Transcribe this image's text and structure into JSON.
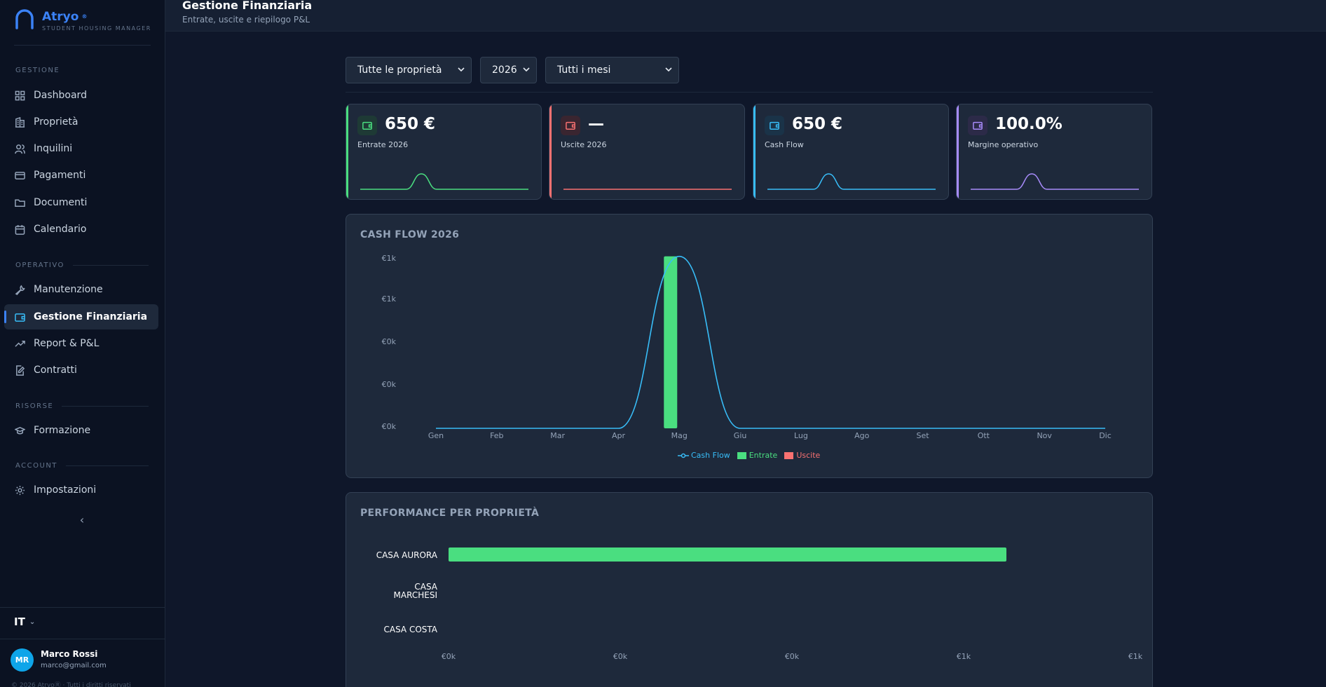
{
  "app": {
    "name": "Atryo",
    "badge": "®",
    "subtitle": "STUDENT HOUSING MANAGER"
  },
  "sidebar": {
    "sections": {
      "gestione": "GESTIONE",
      "operativo": "OPERATIVO",
      "risorse": "RISORSE",
      "account": "ACCOUNT"
    },
    "items": [
      {
        "label": "Dashboard",
        "icon": "grid-icon"
      },
      {
        "label": "Proprietà",
        "icon": "building-icon"
      },
      {
        "label": "Inquilini",
        "icon": "users-icon"
      },
      {
        "label": "Pagamenti",
        "icon": "card-icon"
      },
      {
        "label": "Documenti",
        "icon": "folder-icon"
      },
      {
        "label": "Calendario",
        "icon": "calendar-icon"
      },
      {
        "label": "Manutenzione",
        "icon": "wrench-icon"
      },
      {
        "label": "Gestione Finanziaria",
        "icon": "wallet-icon",
        "active": true
      },
      {
        "label": "Report & P&L",
        "icon": "trending-up-icon"
      },
      {
        "label": "Contratti",
        "icon": "file-edit-icon"
      },
      {
        "label": "Formazione",
        "icon": "graduation-cap-icon"
      },
      {
        "label": "Impostazioni",
        "icon": "gear-icon"
      }
    ],
    "collapse_icon": "‹",
    "language": "IT",
    "user": {
      "initials": "MR",
      "name": "Marco Rossi",
      "email": "marco@gmail.com"
    },
    "copyright": "© 2026 AtryoⓇ · Tutti i diritti riservati"
  },
  "header": {
    "title": "Gestione Finanziaria",
    "subtitle": "Entrate, uscite e riepilogo P&L"
  },
  "filters": {
    "property": "Tutte le proprietà",
    "year": "2026",
    "month": "Tutti i mesi"
  },
  "kpis": [
    {
      "value": "650 €",
      "label": "Entrate 2026",
      "color": "#4ade80",
      "trend": [
        0,
        0,
        0,
        0,
        650,
        0,
        0,
        0,
        0,
        0,
        0,
        0
      ]
    },
    {
      "value": "—",
      "label": "Uscite 2026",
      "color": "#f87171",
      "trend": [
        0,
        0,
        0,
        0,
        0,
        0,
        0,
        0,
        0,
        0,
        0,
        0
      ]
    },
    {
      "value": "650 €",
      "label": "Cash Flow",
      "color": "#38bdf8",
      "trend": [
        0,
        0,
        0,
        0,
        650,
        0,
        0,
        0,
        0,
        0,
        0,
        0
      ]
    },
    {
      "value": "100.0%",
      "label": "Margine operativo",
      "color": "#a78bfa",
      "trend": [
        0,
        0,
        0,
        0,
        100,
        0,
        0,
        0,
        0,
        0,
        0,
        0
      ]
    }
  ],
  "cashflow_panel": {
    "title": "CASH FLOW 2026",
    "y_tick_labels": [
      "€1k",
      "€1k",
      "€0k",
      "€0k",
      "€0k"
    ]
  },
  "performance_panel": {
    "title": "PERFORMANCE PER PROPRIETÀ",
    "x_tick_labels": [
      "€0k",
      "€0k",
      "€0k",
      "€1k",
      "€1k"
    ]
  },
  "chart_data": [
    {
      "type": "bar",
      "title": "CASH FLOW 2026",
      "categories": [
        "Gen",
        "Feb",
        "Mar",
        "Apr",
        "Mag",
        "Giu",
        "Lug",
        "Ago",
        "Set",
        "Ott",
        "Nov",
        "Dic"
      ],
      "series": [
        {
          "name": "Cash Flow",
          "type": "line",
          "color": "#38bdf8",
          "values": [
            0,
            0,
            0,
            0,
            650,
            0,
            0,
            0,
            0,
            0,
            0,
            0
          ]
        },
        {
          "name": "Entrate",
          "type": "bar",
          "color": "#4ade80",
          "values": [
            0,
            0,
            0,
            0,
            650,
            0,
            0,
            0,
            0,
            0,
            0,
            0
          ]
        },
        {
          "name": "Uscite",
          "type": "bar",
          "color": "#f87171",
          "values": [
            0,
            0,
            0,
            0,
            0,
            0,
            0,
            0,
            0,
            0,
            0,
            0
          ]
        }
      ],
      "ylim": [
        0,
        800
      ],
      "legend": "bottom-center",
      "grid": false
    },
    {
      "type": "bar",
      "orientation": "horizontal",
      "title": "PERFORMANCE PER PROPRIETÀ",
      "categories": [
        "CASA AURORA",
        "CASA MARCHESI",
        "CASA COSTA"
      ],
      "values": [
        650,
        0,
        0
      ],
      "xlim": [
        0,
        800
      ],
      "color": "#4ade80",
      "grid": false
    }
  ]
}
